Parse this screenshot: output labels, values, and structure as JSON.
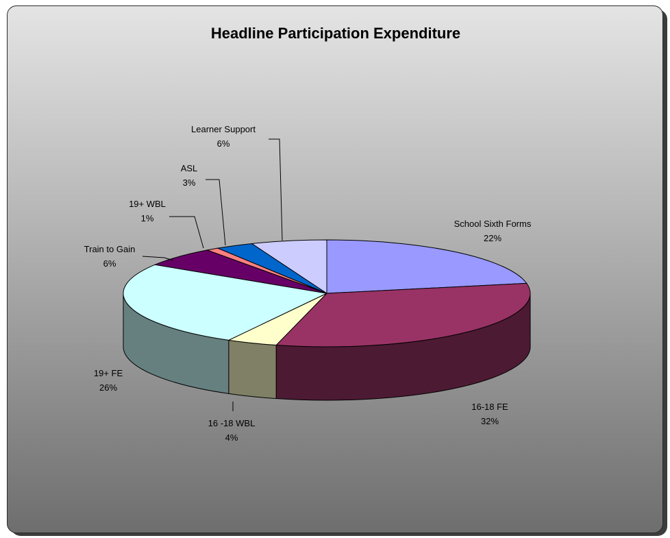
{
  "chart_data": {
    "type": "pie",
    "title": "Headline Participation Expenditure",
    "slices": [
      {
        "name": "School Sixth Forms",
        "value": 22,
        "label": "22%",
        "color": "#9999ff"
      },
      {
        "name": "16-18 FE",
        "value": 32,
        "label": "32%",
        "color": "#993366"
      },
      {
        "name": "16 -18 WBL",
        "value": 4,
        "label": "4%",
        "color": "#ffffcc"
      },
      {
        "name": "19+ FE",
        "value": 26,
        "label": "26%",
        "color": "#ccffff"
      },
      {
        "name": "Train to Gain",
        "value": 6,
        "label": "6%",
        "color": "#660066"
      },
      {
        "name": "19+ WBL",
        "value": 1,
        "label": "1%",
        "color": "#ff8080"
      },
      {
        "name": "ASL",
        "value": 3,
        "label": "3%",
        "color": "#0066cc"
      },
      {
        "name": "Learner Support",
        "value": 6,
        "label": "6%",
        "color": "#ccccff"
      }
    ]
  }
}
